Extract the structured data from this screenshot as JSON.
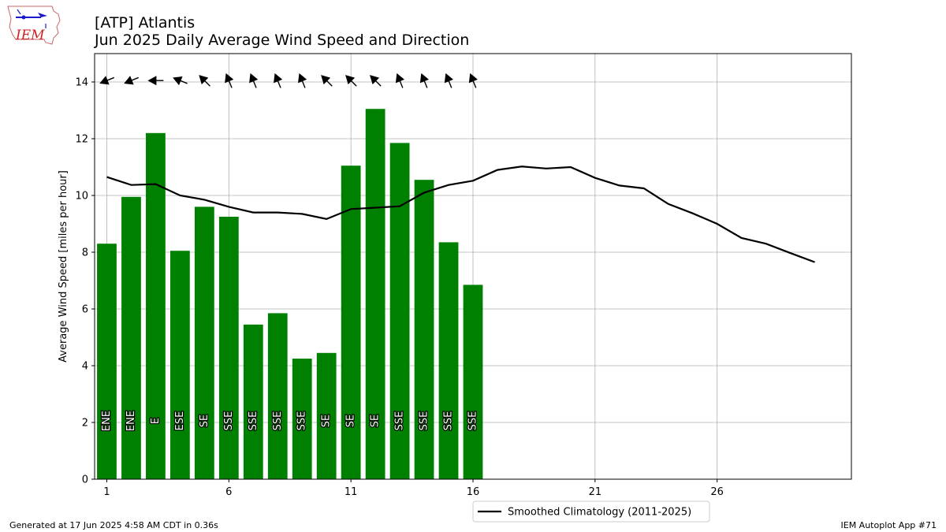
{
  "logo": {
    "text": "IEM"
  },
  "title": {
    "line1": "[ATP] Atlantis",
    "line2": "Jun 2025 Daily Average Wind Speed and Direction"
  },
  "footer": {
    "left": "Generated at 17 Jun 2025 4:58 AM CDT in 0.36s",
    "right": "IEM Autoplot App #71"
  },
  "legend": {
    "climo_label": "Smoothed Climatology (2011-2025)"
  },
  "chart_data": {
    "type": "bar",
    "ylabel": "Average Wind Speed [miles per hour]",
    "xlim": [
      0.5,
      31.5
    ],
    "ylim": [
      0,
      15
    ],
    "xticks": [
      1,
      6,
      11,
      16,
      21,
      26
    ],
    "yticks": [
      0,
      2,
      4,
      6,
      8,
      10,
      12,
      14
    ],
    "grid": true,
    "legend_position": "below-center",
    "bar_color": "#008000",
    "days": [
      1,
      2,
      3,
      4,
      5,
      6,
      7,
      8,
      9,
      10,
      11,
      12,
      13,
      14,
      15,
      16
    ],
    "values": [
      8.3,
      9.95,
      12.2,
      8.05,
      9.6,
      9.25,
      5.45,
      5.85,
      4.25,
      4.45,
      11.05,
      13.05,
      11.85,
      10.55,
      8.35,
      6.85
    ],
    "directions": [
      "ENE",
      "ENE",
      "E",
      "ESE",
      "SE",
      "SSE",
      "SSE",
      "SSE",
      "SSE",
      "SE",
      "SE",
      "SE",
      "SSE",
      "SSE",
      "SSE",
      "SSE"
    ],
    "direction_degrees": [
      68,
      68,
      90,
      112,
      135,
      158,
      158,
      158,
      158,
      135,
      135,
      135,
      158,
      158,
      158,
      158
    ],
    "climatology": {
      "name": "Smoothed Climatology (2011-2025)",
      "color": "#000000",
      "x": [
        1,
        2,
        3,
        4,
        5,
        6,
        7,
        8,
        9,
        10,
        11,
        12,
        13,
        14,
        15,
        16,
        17,
        18,
        19,
        20,
        21,
        22,
        23,
        24,
        25,
        26,
        27,
        28,
        29,
        30
      ],
      "y": [
        10.65,
        10.37,
        10.4,
        10.0,
        9.85,
        9.6,
        9.4,
        9.4,
        9.35,
        9.17,
        9.52,
        9.57,
        9.62,
        10.1,
        10.37,
        10.52,
        10.9,
        11.02,
        10.95,
        11.0,
        10.62,
        10.35,
        10.25,
        9.7,
        9.37,
        9.0,
        8.5,
        8.3,
        7.97,
        7.65
      ]
    }
  }
}
